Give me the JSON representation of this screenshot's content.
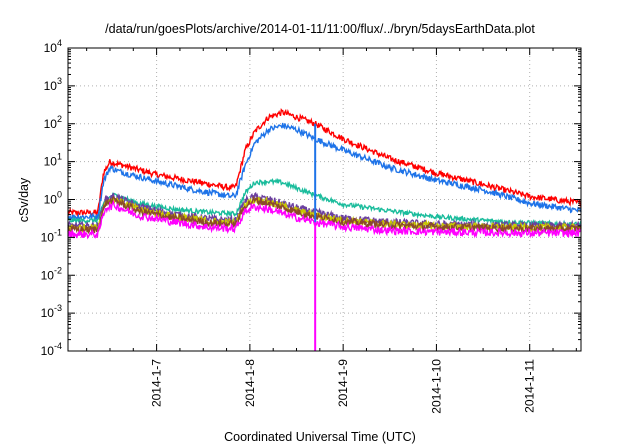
{
  "chart_data": {
    "type": "line",
    "title": "/data/run/goesPlots/archive/2014-01-11/11:00/flux/../bryn/5daysEarthData.plot",
    "xlabel": "Coordinated Universal Time (UTC)",
    "ylabel": "cSv/day",
    "x_ticks": [
      "2014-1-7",
      "2014-1-8",
      "2014-1-9",
      "2014-1-10",
      "2014-1-11"
    ],
    "xlim_days": [
      6.05,
      11.55
    ],
    "yscale": "log",
    "ylim": [
      0.0001,
      10000
    ],
    "y_ticks": [
      {
        "base": "10",
        "exp": "-4"
      },
      {
        "base": "10",
        "exp": "-3"
      },
      {
        "base": "10",
        "exp": "-2"
      },
      {
        "base": "10",
        "exp": "-1"
      },
      {
        "base": "10",
        "exp": "0"
      },
      {
        "base": "10",
        "exp": "1"
      },
      {
        "base": "10",
        "exp": "2"
      },
      {
        "base": "10",
        "exp": "3"
      },
      {
        "base": "10",
        "exp": "4"
      }
    ],
    "grid": true,
    "series": [
      {
        "color": "#ff0000",
        "noise": 0.08,
        "points": [
          [
            6.05,
            0.45
          ],
          [
            6.37,
            0.45
          ],
          [
            6.43,
            5
          ],
          [
            6.5,
            10
          ],
          [
            6.6,
            8.5
          ],
          [
            7.0,
            4.5
          ],
          [
            7.4,
            3
          ],
          [
            7.8,
            2
          ],
          [
            7.85,
            2.2
          ],
          [
            7.95,
            20
          ],
          [
            8.05,
            60
          ],
          [
            8.2,
            150
          ],
          [
            8.35,
            200
          ],
          [
            8.5,
            150
          ],
          [
            8.7,
            100
          ],
          [
            9.0,
            40
          ],
          [
            9.5,
            12
          ],
          [
            10.0,
            5
          ],
          [
            10.5,
            2.5
          ],
          [
            11.0,
            1.2
          ],
          [
            11.55,
            0.8
          ]
        ]
      },
      {
        "color": "#1e73e8",
        "noise": 0.08,
        "points": [
          [
            6.05,
            0.35
          ],
          [
            6.37,
            0.35
          ],
          [
            6.43,
            3
          ],
          [
            6.5,
            7
          ],
          [
            6.6,
            5.5
          ],
          [
            7.0,
            3
          ],
          [
            7.4,
            1.8
          ],
          [
            7.8,
            1.2
          ],
          [
            7.85,
            1.3
          ],
          [
            7.95,
            8
          ],
          [
            8.05,
            30
          ],
          [
            8.2,
            70
          ],
          [
            8.35,
            90
          ],
          [
            8.5,
            70
          ],
          [
            8.7,
            40
          ],
          [
            9.0,
            20
          ],
          [
            9.5,
            7
          ],
          [
            10.0,
            3.2
          ],
          [
            10.5,
            1.8
          ],
          [
            11.0,
            0.8
          ],
          [
            11.55,
            0.5
          ]
        ]
      },
      {
        "color": "#1abc9c",
        "noise": 0.06,
        "points": [
          [
            6.05,
            0.28
          ],
          [
            6.37,
            0.28
          ],
          [
            6.45,
            1.0
          ],
          [
            6.55,
            1.3
          ],
          [
            6.8,
            0.8
          ],
          [
            7.2,
            0.55
          ],
          [
            7.6,
            0.45
          ],
          [
            7.85,
            0.42
          ],
          [
            7.95,
            1.5
          ],
          [
            8.05,
            2.8
          ],
          [
            8.2,
            3.0
          ],
          [
            8.35,
            2.8
          ],
          [
            8.5,
            2.0
          ],
          [
            8.7,
            1.3
          ],
          [
            9.0,
            0.75
          ],
          [
            9.5,
            0.5
          ],
          [
            10.0,
            0.35
          ],
          [
            10.5,
            0.28
          ],
          [
            11.0,
            0.24
          ],
          [
            11.55,
            0.22
          ]
        ]
      },
      {
        "color": "#6b3fa0",
        "noise": 0.1,
        "points": [
          [
            6.05,
            0.2
          ],
          [
            6.37,
            0.2
          ],
          [
            6.45,
            1.0
          ],
          [
            6.55,
            1.2
          ],
          [
            6.8,
            0.65
          ],
          [
            7.2,
            0.4
          ],
          [
            7.6,
            0.3
          ],
          [
            7.85,
            0.28
          ],
          [
            7.95,
            0.9
          ],
          [
            8.05,
            1.2
          ],
          [
            8.2,
            1.0
          ],
          [
            8.5,
            0.6
          ],
          [
            8.7,
            0.45
          ],
          [
            9.0,
            0.32
          ],
          [
            9.5,
            0.25
          ],
          [
            10.0,
            0.22
          ],
          [
            11.0,
            0.2
          ],
          [
            11.55,
            0.2
          ]
        ]
      },
      {
        "color": "#c8c800",
        "noise": 0.1,
        "points": [
          [
            6.05,
            0.18
          ],
          [
            6.37,
            0.18
          ],
          [
            6.45,
            0.85
          ],
          [
            6.55,
            1.0
          ],
          [
            6.8,
            0.55
          ],
          [
            7.2,
            0.35
          ],
          [
            7.6,
            0.26
          ],
          [
            7.85,
            0.24
          ],
          [
            7.95,
            0.75
          ],
          [
            8.05,
            1.0
          ],
          [
            8.2,
            0.85
          ],
          [
            8.5,
            0.5
          ],
          [
            8.7,
            0.38
          ],
          [
            9.0,
            0.28
          ],
          [
            9.5,
            0.22
          ],
          [
            10.0,
            0.2
          ],
          [
            11.0,
            0.18
          ],
          [
            11.55,
            0.18
          ]
        ]
      },
      {
        "color": "#8b4a2b",
        "noise": 0.1,
        "points": [
          [
            6.05,
            0.16
          ],
          [
            6.37,
            0.16
          ],
          [
            6.45,
            0.8
          ],
          [
            6.55,
            0.95
          ],
          [
            6.8,
            0.5
          ],
          [
            7.2,
            0.32
          ],
          [
            7.6,
            0.24
          ],
          [
            7.85,
            0.22
          ],
          [
            7.95,
            0.7
          ],
          [
            8.05,
            0.95
          ],
          [
            8.2,
            0.8
          ],
          [
            8.5,
            0.48
          ],
          [
            8.7,
            0.36
          ],
          [
            9.0,
            0.26
          ],
          [
            9.5,
            0.21
          ],
          [
            10.0,
            0.19
          ],
          [
            11.0,
            0.17
          ],
          [
            11.55,
            0.17
          ]
        ]
      },
      {
        "color": "#ff00ff",
        "noise": 0.1,
        "points": [
          [
            6.05,
            0.12
          ],
          [
            6.37,
            0.12
          ],
          [
            6.45,
            0.6
          ],
          [
            6.55,
            0.7
          ],
          [
            6.8,
            0.38
          ],
          [
            7.2,
            0.25
          ],
          [
            7.6,
            0.18
          ],
          [
            7.85,
            0.17
          ],
          [
            7.95,
            0.5
          ],
          [
            8.05,
            0.65
          ],
          [
            8.2,
            0.55
          ],
          [
            8.5,
            0.33
          ],
          [
            8.7,
            0.25
          ],
          [
            9.0,
            0.19
          ],
          [
            9.5,
            0.15
          ],
          [
            10.0,
            0.14
          ],
          [
            11.0,
            0.13
          ],
          [
            11.55,
            0.13
          ]
        ]
      }
    ],
    "spikes": [
      {
        "color": "#ff00ff",
        "x": 8.7,
        "from": 0.25,
        "to": 0.0001
      },
      {
        "color": "#1e73e8",
        "x": 8.7,
        "from": 0.25,
        "to": 100
      }
    ]
  }
}
